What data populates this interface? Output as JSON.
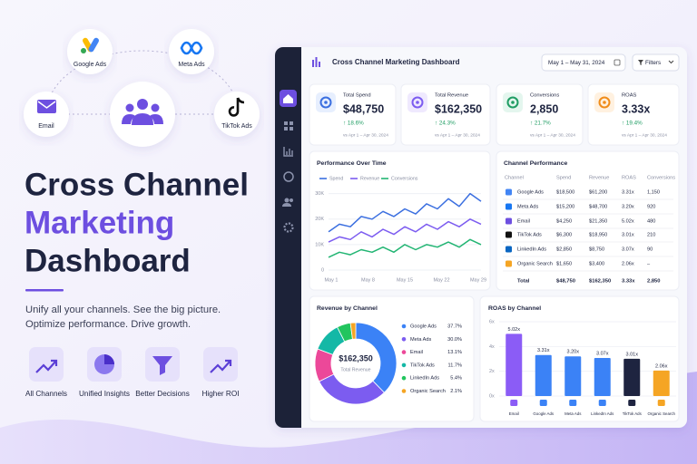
{
  "hero": {
    "channels": [
      "Google Ads",
      "Meta Ads",
      "Email",
      "TikTok Ads"
    ],
    "title": [
      "Cross Channel",
      "Marketing",
      "Dashboard"
    ],
    "tagline": [
      "Unify all your channels. See the big picture.",
      "Optimize performance. Drive growth."
    ],
    "features": [
      "All Channels",
      "Unified Insights",
      "Better Decisions",
      "Higher ROI"
    ]
  },
  "dashboard": {
    "title": "Cross Channel Marketing Dashboard",
    "date_range": "May 1 – May 31, 2024",
    "filters": "Filters",
    "kpis": [
      {
        "label": "Total Spend",
        "value": "$48,750",
        "change": "↑ 18.6%",
        "compare": "vs Apr 1 – Apr 30, 2024"
      },
      {
        "label": "Total Revenue",
        "value": "$162,350",
        "change": "↑ 24.3%",
        "compare": "vs Apr 1 – Apr 30, 2024"
      },
      {
        "label": "Conversions",
        "value": "2,850",
        "change": "↑ 21.7%",
        "compare": "vs Apr 1 – Apr 30, 2024"
      },
      {
        "label": "ROAS",
        "value": "3.33x",
        "change": "↑ 19.4%",
        "compare": "vs Apr 1 – Apr 30, 2024"
      }
    ],
    "channel_performance": {
      "title": "Channel Performance",
      "columns": [
        "Channel",
        "Spend",
        "Revenue",
        "ROAS",
        "Conversions"
      ],
      "rows": [
        [
          "Google Ads",
          "$18,500",
          "$61,200",
          "3.31x",
          "1,150"
        ],
        [
          "Meta Ads",
          "$15,200",
          "$48,700",
          "3.20x",
          "920"
        ],
        [
          "Email",
          "$4,250",
          "$21,350",
          "5.02x",
          "480"
        ],
        [
          "TikTok Ads",
          "$6,300",
          "$18,950",
          "3.01x",
          "210"
        ],
        [
          "LinkedIn Ads",
          "$2,850",
          "$8,750",
          "3.07x",
          "90"
        ],
        [
          "Organic Search",
          "$1,650",
          "$3,400",
          "2.06x",
          "–"
        ]
      ],
      "total": [
        "Total",
        "$48,750",
        "$162,350",
        "3.33x",
        "2,850"
      ]
    }
  },
  "chart_data": [
    {
      "type": "line",
      "title": "Performance Over Time",
      "xticks": [
        "May 1",
        "May 8",
        "May 15",
        "May 22",
        "May 29"
      ],
      "ylim": [
        0,
        32000
      ],
      "yticks": [
        0,
        {
          "value": 10000,
          "label": "10K"
        },
        {
          "value": 20000,
          "label": "20K"
        },
        {
          "value": 30000,
          "label": "30K"
        }
      ],
      "grid": true,
      "series": [
        {
          "name": "Spend",
          "color": "#3b6fe0",
          "values": [
            15000,
            18000,
            17000,
            21000,
            20000,
            23000,
            21000,
            24000,
            22000,
            26000,
            24000,
            28000,
            25000,
            30000,
            27000
          ]
        },
        {
          "name": "Revenue",
          "color": "#7c5cf0",
          "values": [
            11000,
            13000,
            12000,
            15000,
            13000,
            16000,
            14000,
            17000,
            15000,
            18000,
            16000,
            19000,
            17000,
            20000,
            18000
          ]
        },
        {
          "name": "Conversions",
          "color": "#22b573",
          "values": [
            5000,
            7000,
            6000,
            8000,
            7000,
            9000,
            7000,
            10000,
            8000,
            10000,
            9000,
            11000,
            9000,
            12000,
            10000
          ]
        }
      ]
    },
    {
      "type": "pie",
      "title": "Revenue by Channel",
      "center_value": "$162,350",
      "center_label": "Total Revenue",
      "categories": [
        "Google Ads",
        "Meta Ads",
        "Email",
        "TikTok Ads",
        "LinkedIn Ads",
        "Organic Search"
      ],
      "values": [
        37.7,
        30.0,
        13.1,
        11.7,
        5.4,
        2.1
      ],
      "value_labels": [
        "37.7%",
        "30.0%",
        "13.1%",
        "11.7%",
        "5.4%",
        "2.1%"
      ],
      "colors": [
        "#3b82f6",
        "#7c5cf0",
        "#ec4899",
        "#14b8a6",
        "#22c55e",
        "#f5a524"
      ]
    },
    {
      "type": "bar",
      "title": "ROAS by Channel",
      "categories": [
        "Email",
        "Google Ads",
        "Meta Ads",
        "LinkedIn Ads",
        "TikTok Ads",
        "Organic Search"
      ],
      "values": [
        5.02,
        3.31,
        3.2,
        3.07,
        3.01,
        2.06
      ],
      "value_labels": [
        "5.02x",
        "3.31x",
        "3.20x",
        "3.07x",
        "3.01x",
        "2.06x"
      ],
      "colors": [
        "#8b5cf6",
        "#3b82f6",
        "#3b82f6",
        "#3b82f6",
        "#1e2440",
        "#f5a524"
      ],
      "ylim": [
        0,
        6
      ],
      "yticks": [
        {
          "value": 0,
          "label": "0x"
        },
        {
          "value": 2,
          "label": "2x"
        },
        {
          "value": 4,
          "label": "4x"
        },
        {
          "value": 6,
          "label": "6x"
        }
      ]
    }
  ]
}
